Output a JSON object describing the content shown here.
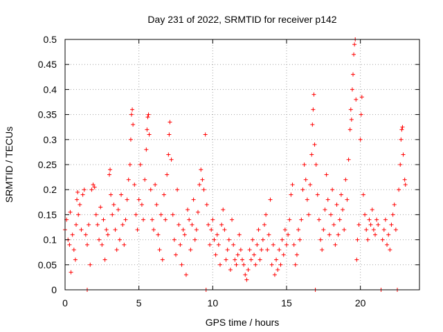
{
  "chart_data": {
    "type": "scatter",
    "title": "Day 231 of 2022, SRMTID for receiver p142",
    "xlabel": "GPS time / hours",
    "ylabel": "SRMTID / TECUs",
    "xlim": [
      0,
      24.0
    ],
    "ylim": [
      0,
      0.5
    ],
    "xticks": [
      0,
      5,
      10,
      15,
      20
    ],
    "xtick_labels": [
      "0",
      "5",
      "10",
      "15",
      "20"
    ],
    "yticks": [
      0,
      0.05,
      0.1,
      0.15,
      0.2,
      0.25,
      0.3,
      0.35,
      0.4,
      0.45,
      0.5
    ],
    "ytick_labels": [
      "0",
      "0.05",
      "0.1",
      "0.15",
      "0.2",
      "0.25",
      "0.3",
      "0.35",
      "0.4",
      "0.45",
      "0.5"
    ],
    "grid": true,
    "marker": "+",
    "series": [
      {
        "name": "SRMTID",
        "color": "#ff0000",
        "points": [
          [
            0.0,
            0.12
          ],
          [
            0.1,
            0.14
          ],
          [
            0.2,
            0.1
          ],
          [
            0.3,
            0.09
          ],
          [
            0.35,
            0.155
          ],
          [
            0.4,
            0.035
          ],
          [
            0.5,
            0.11
          ],
          [
            0.6,
            0.08
          ],
          [
            0.7,
            0.06
          ],
          [
            0.75,
            0.13
          ],
          [
            0.8,
            0.18
          ],
          [
            0.85,
            0.195
          ],
          [
            0.9,
            0.15
          ],
          [
            1.0,
            0.17
          ],
          [
            1.1,
            0.12
          ],
          [
            1.2,
            0.19
          ],
          [
            1.3,
            0.2
          ],
          [
            1.4,
            0.11
          ],
          [
            1.5,
            0.0
          ],
          [
            1.5,
            0.09
          ],
          [
            1.6,
            0.13
          ],
          [
            1.7,
            0.05
          ],
          [
            1.8,
            0.2
          ],
          [
            1.9,
            0.21
          ],
          [
            2.0,
            0.205
          ],
          [
            2.1,
            0.15
          ],
          [
            2.2,
            0.13
          ],
          [
            2.3,
            0.1
          ],
          [
            2.4,
            0.165
          ],
          [
            2.5,
            0.09
          ],
          [
            2.6,
            0.14
          ],
          [
            2.7,
            0.06
          ],
          [
            2.8,
            0.12
          ],
          [
            2.9,
            0.11
          ],
          [
            3.0,
            0.23
          ],
          [
            3.05,
            0.24
          ],
          [
            3.1,
            0.19
          ],
          [
            3.2,
            0.15
          ],
          [
            3.3,
            0.17
          ],
          [
            3.4,
            0.12
          ],
          [
            3.5,
            0.08
          ],
          [
            3.6,
            0.16
          ],
          [
            3.7,
            0.1
          ],
          [
            3.8,
            0.19
          ],
          [
            3.9,
            0.13
          ],
          [
            4.0,
            0.09
          ],
          [
            4.1,
            0.14
          ],
          [
            4.2,
            0.18
          ],
          [
            4.3,
            0.22
          ],
          [
            4.4,
            0.25
          ],
          [
            4.45,
            0.3
          ],
          [
            4.5,
            0.35
          ],
          [
            4.55,
            0.36
          ],
          [
            4.6,
            0.33
          ],
          [
            4.7,
            0.21
          ],
          [
            4.8,
            0.15
          ],
          [
            4.9,
            0.12
          ],
          [
            5.0,
            0.18
          ],
          [
            5.1,
            0.25
          ],
          [
            5.2,
            0.17
          ],
          [
            5.3,
            0.14
          ],
          [
            5.4,
            0.22
          ],
          [
            5.5,
            0.28
          ],
          [
            5.55,
            0.32
          ],
          [
            5.6,
            0.345
          ],
          [
            5.65,
            0.35
          ],
          [
            5.7,
            0.31
          ],
          [
            5.8,
            0.2
          ],
          [
            5.9,
            0.14
          ],
          [
            6.0,
            0.12
          ],
          [
            6.1,
            0.21
          ],
          [
            6.2,
            0.17
          ],
          [
            6.3,
            0.11
          ],
          [
            6.4,
            0.08
          ],
          [
            6.5,
            0.15
          ],
          [
            6.6,
            0.06
          ],
          [
            6.7,
            0.19
          ],
          [
            6.8,
            0.14
          ],
          [
            6.9,
            0.23
          ],
          [
            7.0,
            0.27
          ],
          [
            7.05,
            0.31
          ],
          [
            7.1,
            0.335
          ],
          [
            7.2,
            0.26
          ],
          [
            7.3,
            0.15
          ],
          [
            7.4,
            0.1
          ],
          [
            7.5,
            0.07
          ],
          [
            7.6,
            0.2
          ],
          [
            7.7,
            0.13
          ],
          [
            7.8,
            0.09
          ],
          [
            7.9,
            0.05
          ],
          [
            8.0,
            0.12
          ],
          [
            8.1,
            0.11
          ],
          [
            8.2,
            0.03
          ],
          [
            8.3,
            0.16
          ],
          [
            8.4,
            0.14
          ],
          [
            8.5,
            0.08
          ],
          [
            8.6,
            0.13
          ],
          [
            8.7,
            0.18
          ],
          [
            8.8,
            0.1
          ],
          [
            8.9,
            0.12
          ],
          [
            9.0,
            0.155
          ],
          [
            9.1,
            0.21
          ],
          [
            9.2,
            0.24
          ],
          [
            9.3,
            0.22
          ],
          [
            9.4,
            0.2
          ],
          [
            9.5,
            0.31
          ],
          [
            9.55,
            0.0
          ],
          [
            9.6,
            0.17
          ],
          [
            9.7,
            0.13
          ],
          [
            9.8,
            0.09
          ],
          [
            9.9,
            0.12
          ],
          [
            10.0,
            0.14
          ],
          [
            10.1,
            0.1
          ],
          [
            10.2,
            0.07
          ],
          [
            10.3,
            0.11
          ],
          [
            10.4,
            0.09
          ],
          [
            10.5,
            0.05
          ],
          [
            10.6,
            0.13
          ],
          [
            10.7,
            0.16
          ],
          [
            10.8,
            0.12
          ],
          [
            10.9,
            0.06
          ],
          [
            11.0,
            0.08
          ],
          [
            11.1,
            0.1
          ],
          [
            11.2,
            0.04
          ],
          [
            11.3,
            0.14
          ],
          [
            11.4,
            0.09
          ],
          [
            11.5,
            0.06
          ],
          [
            11.6,
            0.05
          ],
          [
            11.7,
            0.07
          ],
          [
            11.8,
            0.11
          ],
          [
            11.9,
            0.08
          ],
          [
            12.0,
            0.06
          ],
          [
            12.1,
            0.05
          ],
          [
            12.2,
            0.03
          ],
          [
            12.3,
            0.02
          ],
          [
            12.4,
            0.04
          ],
          [
            12.5,
            0.08
          ],
          [
            12.6,
            0.06
          ],
          [
            12.7,
            0.1
          ],
          [
            12.8,
            0.07
          ],
          [
            12.9,
            0.05
          ],
          [
            13.0,
            0.09
          ],
          [
            13.1,
            0.12
          ],
          [
            13.2,
            0.06
          ],
          [
            13.3,
            0.08
          ],
          [
            13.4,
            0.1
          ],
          [
            13.5,
            0.13
          ],
          [
            13.6,
            0.15
          ],
          [
            13.7,
            0.08
          ],
          [
            13.8,
            0.11
          ],
          [
            13.9,
            0.18
          ],
          [
            14.0,
            0.05
          ],
          [
            14.1,
            0.09
          ],
          [
            14.2,
            0.03
          ],
          [
            14.3,
            0.06
          ],
          [
            14.4,
            0.04
          ],
          [
            14.5,
            0.08
          ],
          [
            14.6,
            0.05
          ],
          [
            14.7,
            0.1
          ],
          [
            14.8,
            0.07
          ],
          [
            14.9,
            0.12
          ],
          [
            15.0,
            0.09
          ],
          [
            15.1,
            0.11
          ],
          [
            15.2,
            0.14
          ],
          [
            15.3,
            0.19
          ],
          [
            15.4,
            0.21
          ],
          [
            15.5,
            0.09
          ],
          [
            15.6,
            0.05
          ],
          [
            15.7,
            0.07
          ],
          [
            15.8,
            0.12
          ],
          [
            15.9,
            0.1
          ],
          [
            16.0,
            0.14
          ],
          [
            16.1,
            0.2
          ],
          [
            16.2,
            0.25
          ],
          [
            16.3,
            0.22
          ],
          [
            16.4,
            0.18
          ],
          [
            16.5,
            0.15
          ],
          [
            16.6,
            0.21
          ],
          [
            16.7,
            0.27
          ],
          [
            16.75,
            0.33
          ],
          [
            16.8,
            0.36
          ],
          [
            16.85,
            0.39
          ],
          [
            16.9,
            0.29
          ],
          [
            16.95,
            0.0
          ],
          [
            17.0,
            0.25
          ],
          [
            17.1,
            0.19
          ],
          [
            17.2,
            0.14
          ],
          [
            17.3,
            0.1
          ],
          [
            17.4,
            0.08
          ],
          [
            17.5,
            0.12
          ],
          [
            17.6,
            0.16
          ],
          [
            17.7,
            0.23
          ],
          [
            17.8,
            0.18
          ],
          [
            17.9,
            0.11
          ],
          [
            18.0,
            0.15
          ],
          [
            18.1,
            0.2
          ],
          [
            18.2,
            0.13
          ],
          [
            18.3,
            0.09
          ],
          [
            18.4,
            0.17
          ],
          [
            18.5,
            0.11
          ],
          [
            18.6,
            0.14
          ],
          [
            18.7,
            0.19
          ],
          [
            18.8,
            0.16
          ],
          [
            18.9,
            0.12
          ],
          [
            19.0,
            0.22
          ],
          [
            19.1,
            0.18
          ],
          [
            19.2,
            0.26
          ],
          [
            19.3,
            0.32
          ],
          [
            19.35,
            0.36
          ],
          [
            19.4,
            0.34
          ],
          [
            19.45,
            0.4
          ],
          [
            19.5,
            0.43
          ],
          [
            19.55,
            0.47
          ],
          [
            19.6,
            0.49
          ],
          [
            19.65,
            0.5
          ],
          [
            19.7,
            0.38
          ],
          [
            19.75,
            0.06
          ],
          [
            19.8,
            0.1
          ],
          [
            19.9,
            0.13
          ],
          [
            20.0,
            0.3
          ],
          [
            20.05,
            0.35
          ],
          [
            20.1,
            0.385
          ],
          [
            20.2,
            0.19
          ],
          [
            20.3,
            0.15
          ],
          [
            20.4,
            0.12
          ],
          [
            20.5,
            0.1
          ],
          [
            20.6,
            0.14
          ],
          [
            20.7,
            0.13
          ],
          [
            20.8,
            0.16
          ],
          [
            20.9,
            0.12
          ],
          [
            21.0,
            0.11
          ],
          [
            21.1,
            0.14
          ],
          [
            21.2,
            0.13
          ],
          [
            21.4,
            0.0
          ],
          [
            21.5,
            0.1
          ],
          [
            21.6,
            0.12
          ],
          [
            21.7,
            0.14
          ],
          [
            21.8,
            0.09
          ],
          [
            21.9,
            0.11
          ],
          [
            22.0,
            0.08
          ],
          [
            22.1,
            0.13
          ],
          [
            22.2,
            0.15
          ],
          [
            22.3,
            0.17
          ],
          [
            22.4,
            0.12
          ],
          [
            22.5,
            0.0
          ],
          [
            22.6,
            0.2
          ],
          [
            22.7,
            0.25
          ],
          [
            22.75,
            0.3
          ],
          [
            22.8,
            0.32
          ],
          [
            22.85,
            0.325
          ],
          [
            22.9,
            0.27
          ],
          [
            23.0,
            0.22
          ],
          [
            23.05,
            0.21
          ]
        ]
      }
    ]
  }
}
